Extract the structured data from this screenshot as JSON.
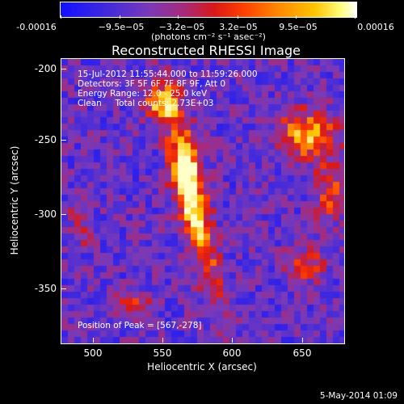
{
  "colorbar": {
    "labels": [
      "-0.00016",
      "−9.5e−05",
      "−3.2e−05",
      "3.2e−05",
      "9.5e−05",
      "0.00016"
    ],
    "units": "(photons cm⁻² s⁻¹ asec⁻²)"
  },
  "title": "Reconstructed RHESSI Image",
  "info": {
    "time_range": "15-Jul-2012 11:55:44.000 to 11:59:26.000",
    "detectors": "Detectors: 3F 5F 6F 7F 8F 9F, Att 0",
    "energy": "Energy Range: 12.0 - 25.0 keV",
    "method": "Clean     Total counts: 2.73E+03",
    "peak": "Position of Peak = [567,-278]"
  },
  "axes": {
    "xlabel": "Heliocentric X (arcsec)",
    "ylabel": "Heliocentric Y (arcsec)",
    "xticks": [
      "500",
      "550",
      "600",
      "650"
    ],
    "yticks": [
      "-200",
      "-250",
      "-300",
      "-350"
    ],
    "xrange": [
      483,
      675
    ],
    "yrange": [
      -192,
      -385
    ]
  },
  "footer": {
    "date": "5-May-2014 01:09"
  },
  "colors": {
    "background": "#000000",
    "low": "#1010ff",
    "mid": "#d81818",
    "high": "#ffffff"
  }
}
